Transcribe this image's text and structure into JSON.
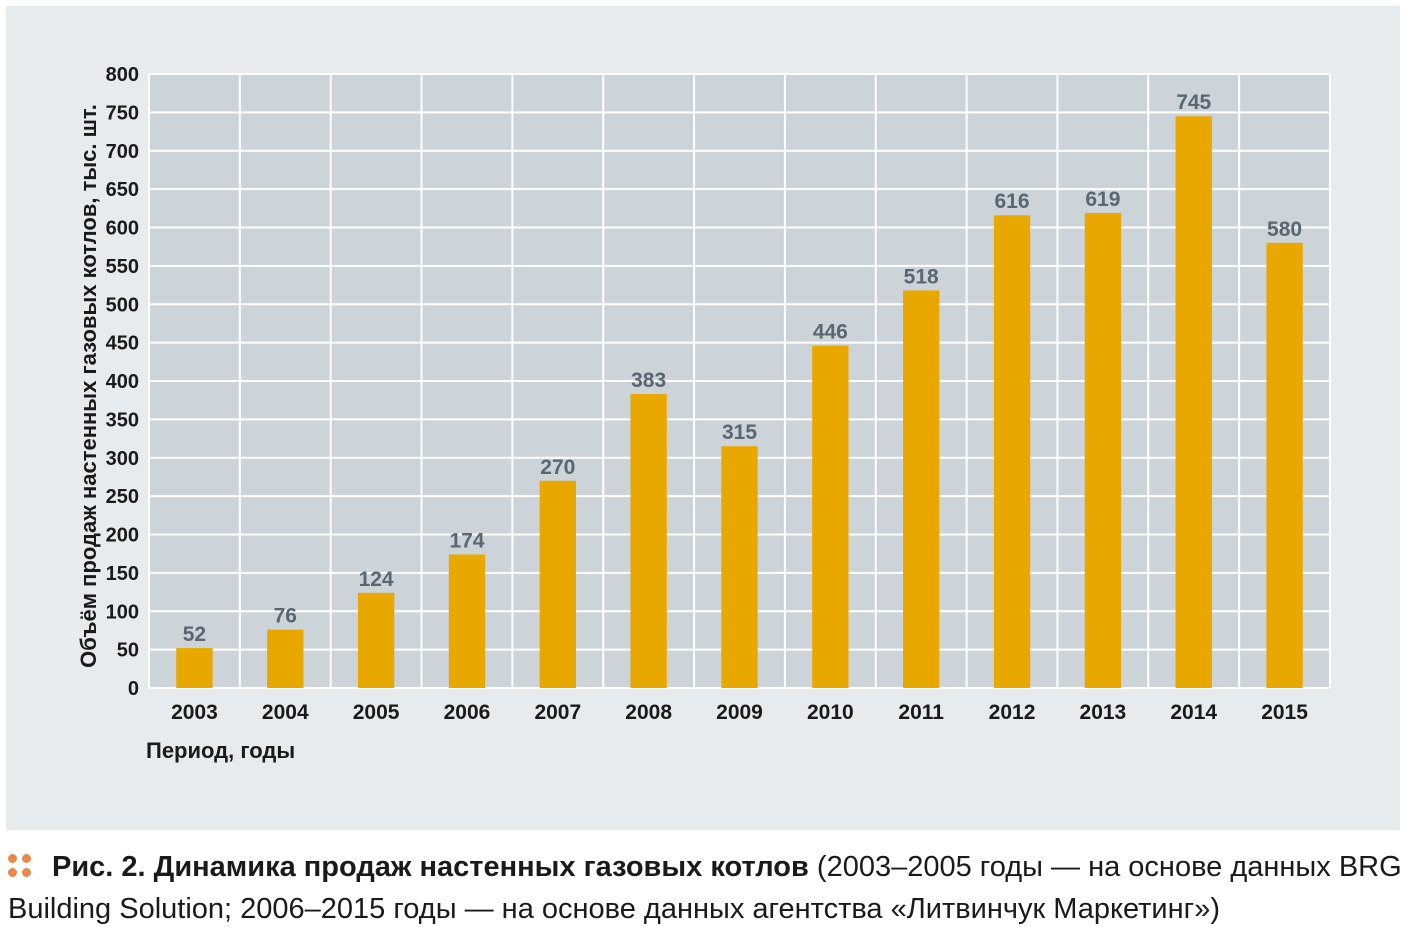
{
  "colors": {
    "bar": "#e8a800",
    "plot_bg": "#ccd3d9",
    "grid": "#ffffff",
    "data_label": "#5b6670",
    "bullet": "#e8894b"
  },
  "chart_data": {
    "type": "bar",
    "categories": [
      "2003",
      "2004",
      "2005",
      "2006",
      "2007",
      "2008",
      "2009",
      "2010",
      "2011",
      "2012",
      "2013",
      "2014",
      "2015"
    ],
    "values": [
      52,
      76,
      124,
      174,
      270,
      383,
      315,
      446,
      518,
      616,
      619,
      745,
      580
    ],
    "data_labels": [
      "52",
      "76",
      "124",
      "174",
      "270",
      "383",
      "315",
      "446",
      "518",
      "616",
      "619",
      "745",
      "580"
    ],
    "xlabel": "Период, годы",
    "ylabel": "Объём продаж настенных газовых котлов, тыс. шт.",
    "ylim": [
      0,
      800
    ],
    "yticks": [
      0,
      50,
      100,
      150,
      200,
      250,
      300,
      350,
      400,
      450,
      500,
      550,
      600,
      650,
      700,
      750,
      800
    ],
    "grid": true
  },
  "caption": {
    "bullet_icon": "four-dots-icon",
    "title_bold": "Рис. 2. Динамика продаж настенных газовых котлов",
    "text": " (2003–2005 годы — на основе данных BRG Building Solution; 2006–2015 годы — на основе данных агентства «Литвинчук Маркетинг»)"
  }
}
